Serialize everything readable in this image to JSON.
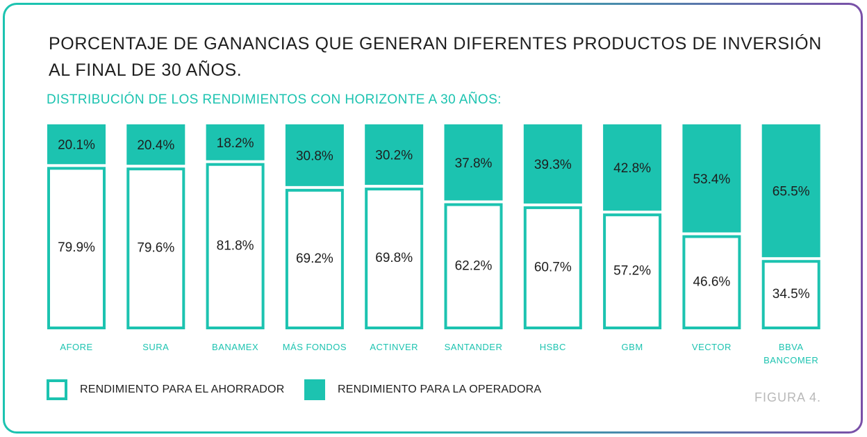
{
  "title": "PORCENTAJE DE GANANCIAS QUE GENERAN DIFERENTES PRODUCTOS DE INVERSIÓN AL FINAL DE  30 AÑOS.",
  "subtitle": "DISTRIBUCIÓN DE LOS RENDIMIENTOS CON HORIZONTE A 30 AÑOS:",
  "figure_label": "FIGURA 4.",
  "legend": {
    "saver": "RENDIMIENTO PARA EL AHORRADOR",
    "operator": "RENDIMIENTO PARA LA OPERADORA"
  },
  "colors": {
    "accent": "#1cc3b0",
    "text": "#1e1e1e",
    "muted": "#b8b8b8",
    "frame_end": "#7a4fa8"
  },
  "chart_data": {
    "type": "bar",
    "stacked": true,
    "normalized": true,
    "title": "DISTRIBUCIÓN DE LOS RENDIMIENTOS CON HORIZONTE A 30 AÑOS:",
    "categories": [
      "AFORE",
      "SURA",
      "BANAMEX",
      "MÁS FONDOS",
      "ACTINVER",
      "SANTANDER",
      "HSBC",
      "GBM",
      "VECTOR",
      "BBVA BANCOMER"
    ],
    "category_lines": [
      [
        "AFORE"
      ],
      [
        "SURA"
      ],
      [
        "BANAMEX"
      ],
      [
        "MÁS FONDOS"
      ],
      [
        "ACTINVER"
      ],
      [
        "SANTANDER"
      ],
      [
        "HSBC"
      ],
      [
        "GBM"
      ],
      [
        "VECTOR"
      ],
      [
        "BBVA",
        "BANCOMER"
      ]
    ],
    "series": [
      {
        "name": "RENDIMIENTO PARA LA OPERADORA",
        "position": "top",
        "values": [
          20.1,
          20.4,
          18.2,
          30.8,
          30.2,
          37.8,
          39.3,
          42.8,
          53.4,
          65.5
        ],
        "labels": [
          "20.1%",
          "20.4%",
          "18.2%",
          "30.8%",
          "30.2%",
          "37.8%",
          "39.3%",
          "42.8%",
          "53.4%",
          "65.5%"
        ]
      },
      {
        "name": "RENDIMIENTO PARA EL AHORRADOR",
        "position": "bottom",
        "values": [
          79.9,
          79.6,
          81.8,
          69.2,
          69.8,
          62.2,
          60.7,
          57.2,
          46.6,
          34.5
        ],
        "labels": [
          "79.9%",
          "79.6%",
          "81.8%",
          "69.2%",
          "69.8%",
          "62.2%",
          "60.7%",
          "57.2%",
          "46.6%",
          "34.5%"
        ]
      }
    ],
    "ylim": [
      0,
      100
    ],
    "xlabel": "",
    "ylabel": "",
    "grid": false,
    "legend_position": "bottom-left"
  }
}
